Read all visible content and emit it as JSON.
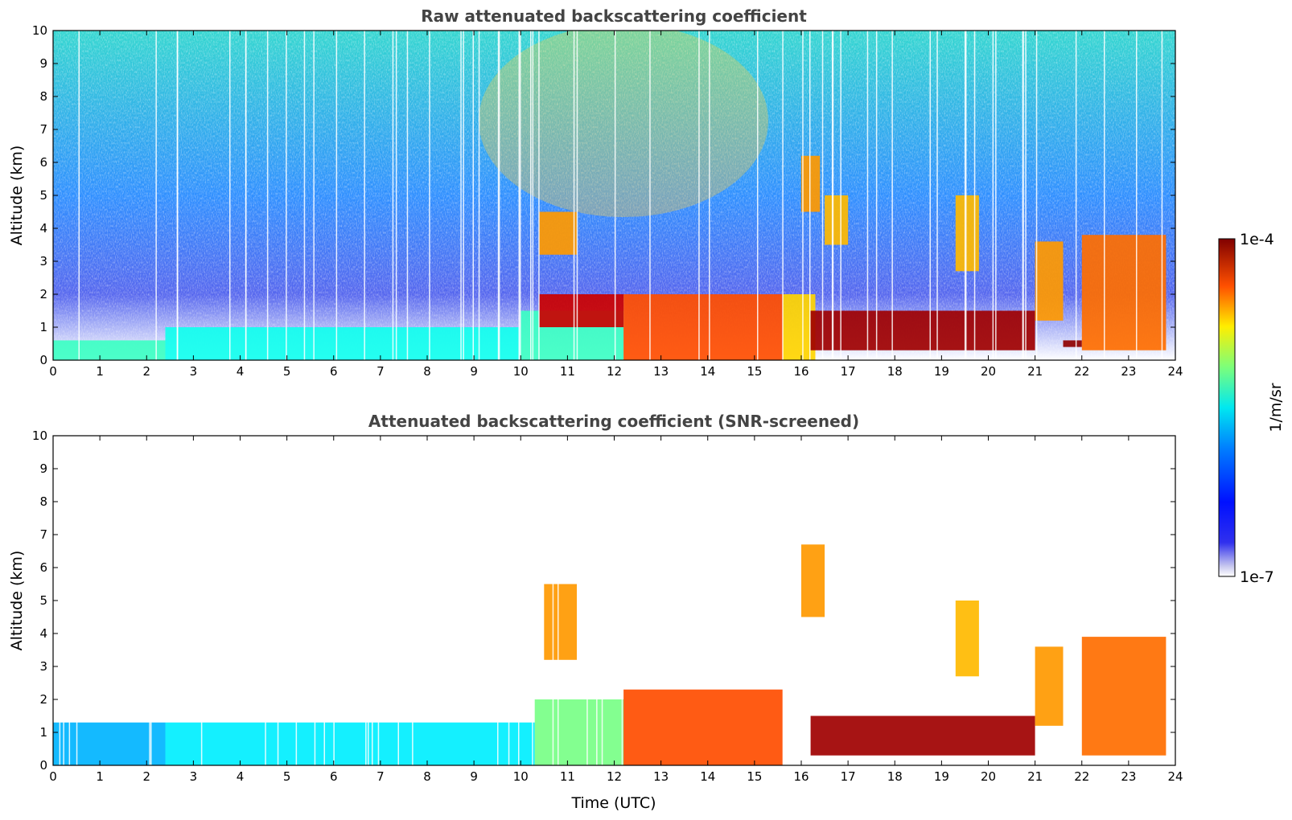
{
  "chart_data": [
    {
      "type": "heatmap",
      "title": "Raw attenuated backscattering coefficient",
      "xlabel": "",
      "ylabel": "Altitude (km)",
      "xlim": [
        0,
        24
      ],
      "ylim": [
        0,
        10
      ],
      "xticks": [
        "0",
        "1",
        "2",
        "3",
        "4",
        "5",
        "6",
        "7",
        "8",
        "9",
        "10",
        "11",
        "12",
        "13",
        "14",
        "15",
        "16",
        "17",
        "18",
        "19",
        "20",
        "21",
        "22",
        "23",
        "24"
      ],
      "yticks": [
        "0",
        "1",
        "2",
        "3",
        "4",
        "5",
        "6",
        "7",
        "8",
        "9",
        "10"
      ],
      "grid": false,
      "features": [
        {
          "x": [
            0,
            2.4
          ],
          "y": [
            0,
            0.6
          ],
          "value": 2e-06
        },
        {
          "x": [
            2.4,
            10
          ],
          "y": [
            0,
            1.0
          ],
          "value": 1.5e-06
        },
        {
          "x": [
            10,
            12.2
          ],
          "y": [
            0,
            1.5
          ],
          "value": 2e-06
        },
        {
          "x": [
            10.4,
            12.2
          ],
          "y": [
            1.0,
            2.0
          ],
          "value": 6e-05
        },
        {
          "x": [
            12.2,
            15.6
          ],
          "y": [
            0,
            2.0
          ],
          "value": 2.5e-05
        },
        {
          "x": [
            15.6,
            16.3
          ],
          "y": [
            0,
            2.0
          ],
          "value": 1e-05
        },
        {
          "x": [
            16.0,
            16.4
          ],
          "y": [
            4.5,
            6.2
          ],
          "value": 1.5e-05
        },
        {
          "x": [
            16.5,
            17.0
          ],
          "y": [
            3.5,
            5.0
          ],
          "value": 1.2e-05
        },
        {
          "x": [
            10.4,
            11.2
          ],
          "y": [
            3.2,
            4.5
          ],
          "value": 1.5e-05
        },
        {
          "x": [
            16.2,
            21.0
          ],
          "y": [
            0.3,
            1.5
          ],
          "value": 8e-05
        },
        {
          "x": [
            19.3,
            19.8
          ],
          "y": [
            2.7,
            5.0
          ],
          "value": 1.2e-05
        },
        {
          "x": [
            21.0,
            21.6
          ],
          "y": [
            1.2,
            3.6
          ],
          "value": 1.5e-05
        },
        {
          "x": [
            21.6,
            22.0
          ],
          "y": [
            0.4,
            0.6
          ],
          "value": 9e-05
        },
        {
          "x": [
            22.0,
            23.8
          ],
          "y": [
            0.3,
            3.8
          ],
          "value": 2e-05
        }
      ]
    },
    {
      "type": "heatmap",
      "title": "Attenuated backscattering coefficient (SNR-screened)",
      "xlabel": "Time (UTC)",
      "ylabel": "Altitude (km)",
      "xlim": [
        0,
        24
      ],
      "ylim": [
        0,
        10
      ],
      "xticks": [
        "0",
        "1",
        "2",
        "3",
        "4",
        "5",
        "6",
        "7",
        "8",
        "9",
        "10",
        "11",
        "12",
        "13",
        "14",
        "15",
        "16",
        "17",
        "18",
        "19",
        "20",
        "21",
        "22",
        "23",
        "24"
      ],
      "yticks": [
        "0",
        "1",
        "2",
        "3",
        "4",
        "5",
        "6",
        "7",
        "8",
        "9",
        "10"
      ],
      "grid": false,
      "features": [
        {
          "x": [
            0,
            2.4
          ],
          "y": [
            0,
            1.3
          ],
          "value": 8e-07
        },
        {
          "x": [
            2.4,
            10.3
          ],
          "y": [
            0,
            1.3
          ],
          "value": 1.2e-06
        },
        {
          "x": [
            10.3,
            12.2
          ],
          "y": [
            0,
            2.0
          ],
          "value": 3e-06
        },
        {
          "x": [
            12.2,
            15.6
          ],
          "y": [
            0,
            2.3
          ],
          "value": 2.5e-05
        },
        {
          "x": [
            16.0,
            16.5
          ],
          "y": [
            4.5,
            6.7
          ],
          "value": 1.5e-05
        },
        {
          "x": [
            10.5,
            11.2
          ],
          "y": [
            3.2,
            5.5
          ],
          "value": 1.5e-05
        },
        {
          "x": [
            19.3,
            19.8
          ],
          "y": [
            2.7,
            5.0
          ],
          "value": 1.2e-05
        },
        {
          "x": [
            16.2,
            21.0
          ],
          "y": [
            0.3,
            1.5
          ],
          "value": 8e-05
        },
        {
          "x": [
            21.0,
            21.6
          ],
          "y": [
            1.2,
            3.6
          ],
          "value": 1.5e-05
        },
        {
          "x": [
            22.0,
            23.8
          ],
          "y": [
            0.3,
            3.9
          ],
          "value": 2e-05
        }
      ]
    }
  ],
  "colorbar": {
    "label": "1/m/sr",
    "max_label": "1e-4",
    "min_label": "1e-7",
    "range": [
      1e-07,
      0.0001
    ],
    "scale": "log",
    "colormap": "jet"
  }
}
